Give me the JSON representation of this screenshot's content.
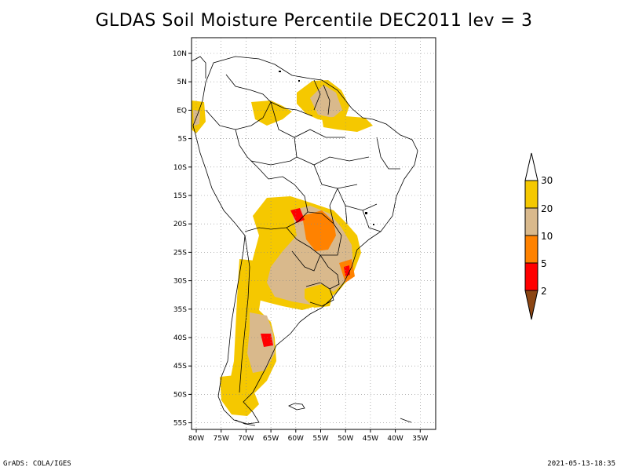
{
  "title": "GLDAS Soil Moisture Percentile DEC2011 lev = 3",
  "footer": {
    "left": "GrADS: COLA/IGES",
    "right": "2021-05-13-18:35"
  },
  "map": {
    "lat_labels": [
      "10N",
      "5N",
      "EQ",
      "5S",
      "10S",
      "15S",
      "20S",
      "25S",
      "30S",
      "35S",
      "40S",
      "45S",
      "50S",
      "55S"
    ],
    "lon_labels": [
      "80W",
      "75W",
      "70W",
      "65W",
      "60W",
      "55W",
      "50W",
      "45W",
      "40W",
      "35W"
    ],
    "lon_range": [
      -80,
      -33
    ],
    "lat_range": [
      -56,
      11
    ],
    "grid": true
  },
  "colorbar": {
    "labels": [
      "30",
      "20",
      "10",
      "5",
      "2"
    ],
    "colors": {
      "above30": "#ffffff",
      "20to30": "#f5c800",
      "10to20": "#d9b98c",
      "5to10": "#ff8200",
      "2to5": "#ff0000",
      "below2": "#8b4513"
    }
  }
}
